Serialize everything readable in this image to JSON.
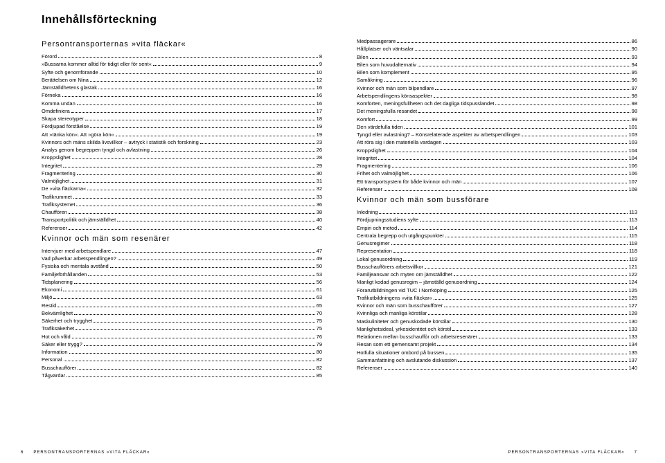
{
  "mainTitle": "Innehållsförteckning",
  "footer": {
    "leftNum": "6",
    "text": "PERSONTRANSPORTERNAS »VITA FLÄCKAR«",
    "rightNum": "7"
  },
  "leftColumn": [
    {
      "type": "section",
      "text": "Persontransporternas »vita fläckar«"
    },
    {
      "type": "entry",
      "label": "Förord",
      "page": "8"
    },
    {
      "type": "entry",
      "label": "»Bussarna kommer alltid för tidigt eller för sent«",
      "page": "9"
    },
    {
      "type": "entry",
      "label": "Syfte och genomförande",
      "page": "10"
    },
    {
      "type": "entry",
      "label": "Berättelsen om Nina",
      "page": "12"
    },
    {
      "type": "entry",
      "label": "Jämställdhetens glastak",
      "page": "16"
    },
    {
      "type": "entry",
      "label": "Förneka",
      "page": "16"
    },
    {
      "type": "entry",
      "label": "Komma undan",
      "page": "16"
    },
    {
      "type": "entry",
      "label": "Omdefiniera",
      "page": "17"
    },
    {
      "type": "entry",
      "label": "Skapa stereotyper",
      "page": "18"
    },
    {
      "type": "entry",
      "label": "Fördjupad förståelse",
      "page": "19"
    },
    {
      "type": "entry",
      "label": "Att »tänka kön«. Att »göra kön«",
      "page": "19"
    },
    {
      "type": "entry",
      "label": "Kvinnors och mäns skilda livsvillkor – avtryck i statistik och forskning",
      "page": "23"
    },
    {
      "type": "entry",
      "label": "Analys genom begreppen tyngd och avlastning",
      "page": "26"
    },
    {
      "type": "entry",
      "label": "Kroppslighet",
      "page": "28"
    },
    {
      "type": "entry",
      "label": "Integritet",
      "page": "29"
    },
    {
      "type": "entry",
      "label": "Fragmentering",
      "page": "30"
    },
    {
      "type": "entry",
      "label": "Valmöjlighet",
      "page": "31"
    },
    {
      "type": "entry",
      "label": "De »vita fläckarna«",
      "page": "32"
    },
    {
      "type": "entry",
      "label": "Trafikrummet",
      "page": "33"
    },
    {
      "type": "entry",
      "label": "Trafiksystemet",
      "page": "36"
    },
    {
      "type": "entry",
      "label": "Chauffören",
      "page": "38"
    },
    {
      "type": "entry",
      "label": "Transportpolitik och jämställdhet",
      "page": "40"
    },
    {
      "type": "entry",
      "label": "Referenser",
      "page": "42"
    },
    {
      "type": "section",
      "text": "Kvinnor och män som resenärer"
    },
    {
      "type": "entry",
      "label": "Intervjuer med arbetspendlare",
      "page": "47"
    },
    {
      "type": "entry",
      "label": "Vad påverkar arbetspendlingen?",
      "page": "49"
    },
    {
      "type": "entry",
      "label": "Fysiska och mentala avstånd",
      "page": "50"
    },
    {
      "type": "entry",
      "label": "Familjeförhållanden",
      "page": "53"
    },
    {
      "type": "entry",
      "label": "Tidsplanering",
      "page": "56"
    },
    {
      "type": "entry",
      "label": "Ekonomi",
      "page": "61"
    },
    {
      "type": "entry",
      "label": "Miljö",
      "page": "63"
    },
    {
      "type": "entry",
      "label": "Restid",
      "page": "65"
    },
    {
      "type": "entry",
      "label": "Bekvämlighet",
      "page": "70"
    },
    {
      "type": "entry",
      "label": "Säkerhet och trygghet",
      "page": "75"
    },
    {
      "type": "entry",
      "label": "Trafiksäkerhet",
      "page": "75"
    },
    {
      "type": "entry",
      "label": "Hot och våld",
      "page": "76"
    },
    {
      "type": "entry",
      "label": "Säker eller trygg?",
      "page": "79"
    },
    {
      "type": "entry",
      "label": "Information",
      "page": "80"
    },
    {
      "type": "entry",
      "label": "Personal",
      "page": "82"
    },
    {
      "type": "entry",
      "label": "Busschaufförer",
      "page": "82"
    },
    {
      "type": "entry",
      "label": "Tågvärdar",
      "page": "85"
    }
  ],
  "rightColumn": [
    {
      "type": "entry",
      "label": "Medpassagerare",
      "page": "86"
    },
    {
      "type": "entry",
      "label": "Hållplatser och väntsalar",
      "page": "90"
    },
    {
      "type": "entry",
      "label": "Bilen",
      "page": "93"
    },
    {
      "type": "entry",
      "label": "Bilen som huvudalternativ",
      "page": "94"
    },
    {
      "type": "entry",
      "label": "Bilen som komplement",
      "page": "95"
    },
    {
      "type": "entry",
      "label": "Samåkning",
      "page": "96"
    },
    {
      "type": "entry",
      "label": "Kvinnor och män som bilpendlare",
      "page": "97"
    },
    {
      "type": "entry",
      "label": "Arbetspendlingens könsaspekter",
      "page": "98"
    },
    {
      "type": "entry",
      "label": "Komforten, meningsfullheten och det dagliga tidspusslandet",
      "page": "98"
    },
    {
      "type": "entry",
      "label": "Det meningsfulla resandet",
      "page": "98"
    },
    {
      "type": "entry",
      "label": "Komfort",
      "page": "99"
    },
    {
      "type": "entry",
      "label": "Den värdefulla tiden",
      "page": "101"
    },
    {
      "type": "entry",
      "label": "Tyngd eller avlastning? – Könsrelaterade aspekter av arbetspendlingen",
      "page": "103"
    },
    {
      "type": "entry",
      "label": "Att röra sig i den materiella vardagen",
      "page": "103"
    },
    {
      "type": "entry",
      "label": "Kroppslighet",
      "page": "104"
    },
    {
      "type": "entry",
      "label": "Integritet",
      "page": "104"
    },
    {
      "type": "entry",
      "label": "Fragmentering",
      "page": "106"
    },
    {
      "type": "entry",
      "label": "Frihet och valmöjlighet",
      "page": "106"
    },
    {
      "type": "entry",
      "label": "Ett transportsystem för både kvinnor och män",
      "page": "107"
    },
    {
      "type": "entry",
      "label": "Referenser",
      "page": "108"
    },
    {
      "type": "section",
      "text": "Kvinnor och män som bussförare"
    },
    {
      "type": "entry",
      "label": "Inledning",
      "page": "113"
    },
    {
      "type": "entry",
      "label": "Fördjupningsstudiens syfte",
      "page": "113"
    },
    {
      "type": "entry",
      "label": "Empiri och metod",
      "page": "114"
    },
    {
      "type": "entry",
      "label": "Centrala begrepp och utgångspunkter",
      "page": "115"
    },
    {
      "type": "entry",
      "label": "Genusregimer",
      "page": "118"
    },
    {
      "type": "entry",
      "label": "Representation",
      "page": "118"
    },
    {
      "type": "entry",
      "label": "Lokal genusordning",
      "page": "119"
    },
    {
      "type": "entry",
      "label": "Busschaufförers arbetsvillkor",
      "page": "121"
    },
    {
      "type": "entry",
      "label": "Familjeansvar och myten om jämställdhet",
      "page": "122"
    },
    {
      "type": "entry",
      "label": "Manligt kodad genusregim – jämställd genusordning",
      "page": "124"
    },
    {
      "type": "entry",
      "label": "Förarutbildningen vid TUC i Norrköping",
      "page": "125"
    },
    {
      "type": "entry",
      "label": "Trafikutbildningens »vita fläckar«",
      "page": "125"
    },
    {
      "type": "entry",
      "label": "Kvinnor och män som busschaufförer",
      "page": "127"
    },
    {
      "type": "entry",
      "label": "Kvinnliga och manliga körstilar",
      "page": "128"
    },
    {
      "type": "entry",
      "label": "Maskuliniteter och genuskodade körstilar",
      "page": "130"
    },
    {
      "type": "entry",
      "label": "Manlighetsideal, yrkesidentitet och körstil",
      "page": "133"
    },
    {
      "type": "entry",
      "label": "Relationen mellan busschauffòr och arbetsresenärer",
      "page": "133"
    },
    {
      "type": "entry",
      "label": "Resan som ett gemensamt projekt",
      "page": "134"
    },
    {
      "type": "entry",
      "label": "Hotfulla situationer ombord på bussen",
      "page": "135"
    },
    {
      "type": "entry",
      "label": "Sammanfattning och avslutande diskussion",
      "page": "137"
    },
    {
      "type": "entry",
      "label": "Referenser",
      "page": "140"
    }
  ]
}
